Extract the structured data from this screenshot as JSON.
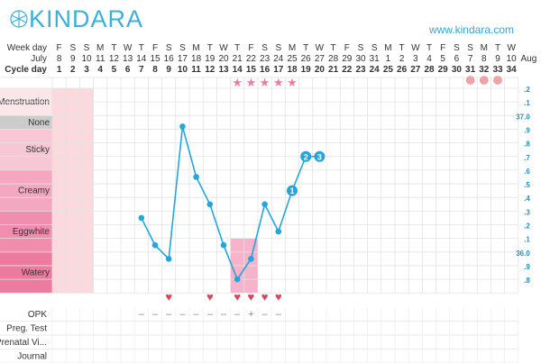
{
  "brand": {
    "name": "KINDARA",
    "website": "www.kindara.com",
    "accent": "#2aa9dd"
  },
  "header_rows": [
    {
      "label": "Week day",
      "values": [
        "F",
        "S",
        "S",
        "M",
        "T",
        "W",
        "T",
        "F",
        "S",
        "S",
        "M",
        "T",
        "W",
        "T",
        "F",
        "S",
        "S",
        "M",
        "T",
        "W",
        "T",
        "F",
        "S",
        "S",
        "M",
        "T",
        "W",
        "T",
        "F",
        "S",
        "S",
        "M",
        "T",
        "W"
      ]
    },
    {
      "label": "July",
      "values": [
        "8",
        "9",
        "10",
        "11",
        "12",
        "13",
        "14",
        "15",
        "16",
        "17",
        "18",
        "19",
        "20",
        "21",
        "22",
        "23",
        "24",
        "25",
        "26",
        "27",
        "28",
        "29",
        "30",
        "31",
        "1",
        "2",
        "3",
        "4",
        "5",
        "6",
        "7",
        "8",
        "9",
        "10"
      ],
      "extra": "Aug"
    },
    {
      "label": "Cycle day",
      "values": [
        "1",
        "2",
        "3",
        "4",
        "5",
        "6",
        "7",
        "8",
        "9",
        "10",
        "11",
        "12",
        "13",
        "14",
        "15",
        "16",
        "17",
        "18",
        "19",
        "20",
        "21",
        "22",
        "23",
        "24",
        "25",
        "26",
        "27",
        "28",
        "29",
        "30",
        "31",
        "32",
        "33",
        "34"
      ]
    }
  ],
  "fluid_rows": [
    {
      "label": "Menstruation",
      "color": "#fbe6ea"
    },
    {
      "label": "None",
      "color": "#cccccc"
    },
    {
      "label": "Sticky",
      "color": "#f7c7d6"
    },
    {
      "label": "Creamy",
      "color": "#f3a7c0"
    },
    {
      "label": "Eggwhite",
      "color": "#ef8eae"
    },
    {
      "label": "Watery",
      "color": "#ec7ba0"
    }
  ],
  "right_scale": [
    ".2",
    ".1",
    "37.0",
    ".9",
    ".8",
    ".7",
    ".6",
    ".5",
    ".4",
    ".3",
    ".2",
    ".1",
    "36.0",
    ".9",
    ".8"
  ],
  "bottom_rows": [
    "OPK",
    "Preg. Test",
    "Prenatal Vi...",
    "Journal"
  ],
  "temperature_points": [
    {
      "day": 7,
      "temp": 36.25
    },
    {
      "day": 8,
      "temp": 36.05
    },
    {
      "day": 9,
      "temp": 35.95
    },
    {
      "day": 10,
      "temp": 36.92
    },
    {
      "day": 11,
      "temp": 36.55
    },
    {
      "day": 12,
      "temp": 36.35
    },
    {
      "day": 13,
      "temp": 36.05
    },
    {
      "day": 14,
      "temp": 35.8
    },
    {
      "day": 15,
      "temp": 35.95
    },
    {
      "day": 16,
      "temp": 36.35
    },
    {
      "day": 17,
      "temp": 36.15
    },
    {
      "day": 18,
      "temp": 36.45
    },
    {
      "day": 19,
      "temp": 36.7
    },
    {
      "day": 20,
      "temp": 36.7
    }
  ],
  "temperature_labels": [
    {
      "day": 18,
      "label": "1"
    },
    {
      "day": 19,
      "label": "2"
    },
    {
      "day": 20,
      "label": "3"
    }
  ],
  "menstruation_days": [
    1,
    2,
    3
  ],
  "ovulation_window": {
    "start": 14,
    "end": 15
  },
  "star_days": [
    14,
    15,
    16,
    17,
    18
  ],
  "intercourse_days": [
    9,
    12,
    14,
    15,
    16,
    17
  ],
  "next_period_days": [
    31,
    32,
    33
  ],
  "opk_values": [
    "–",
    "–",
    "–",
    "–",
    "–",
    "–",
    "–",
    "–",
    "+",
    "–",
    "–"
  ],
  "opk_days": [
    7,
    8,
    9,
    10,
    11,
    12,
    13,
    14,
    15,
    16,
    17
  ]
}
